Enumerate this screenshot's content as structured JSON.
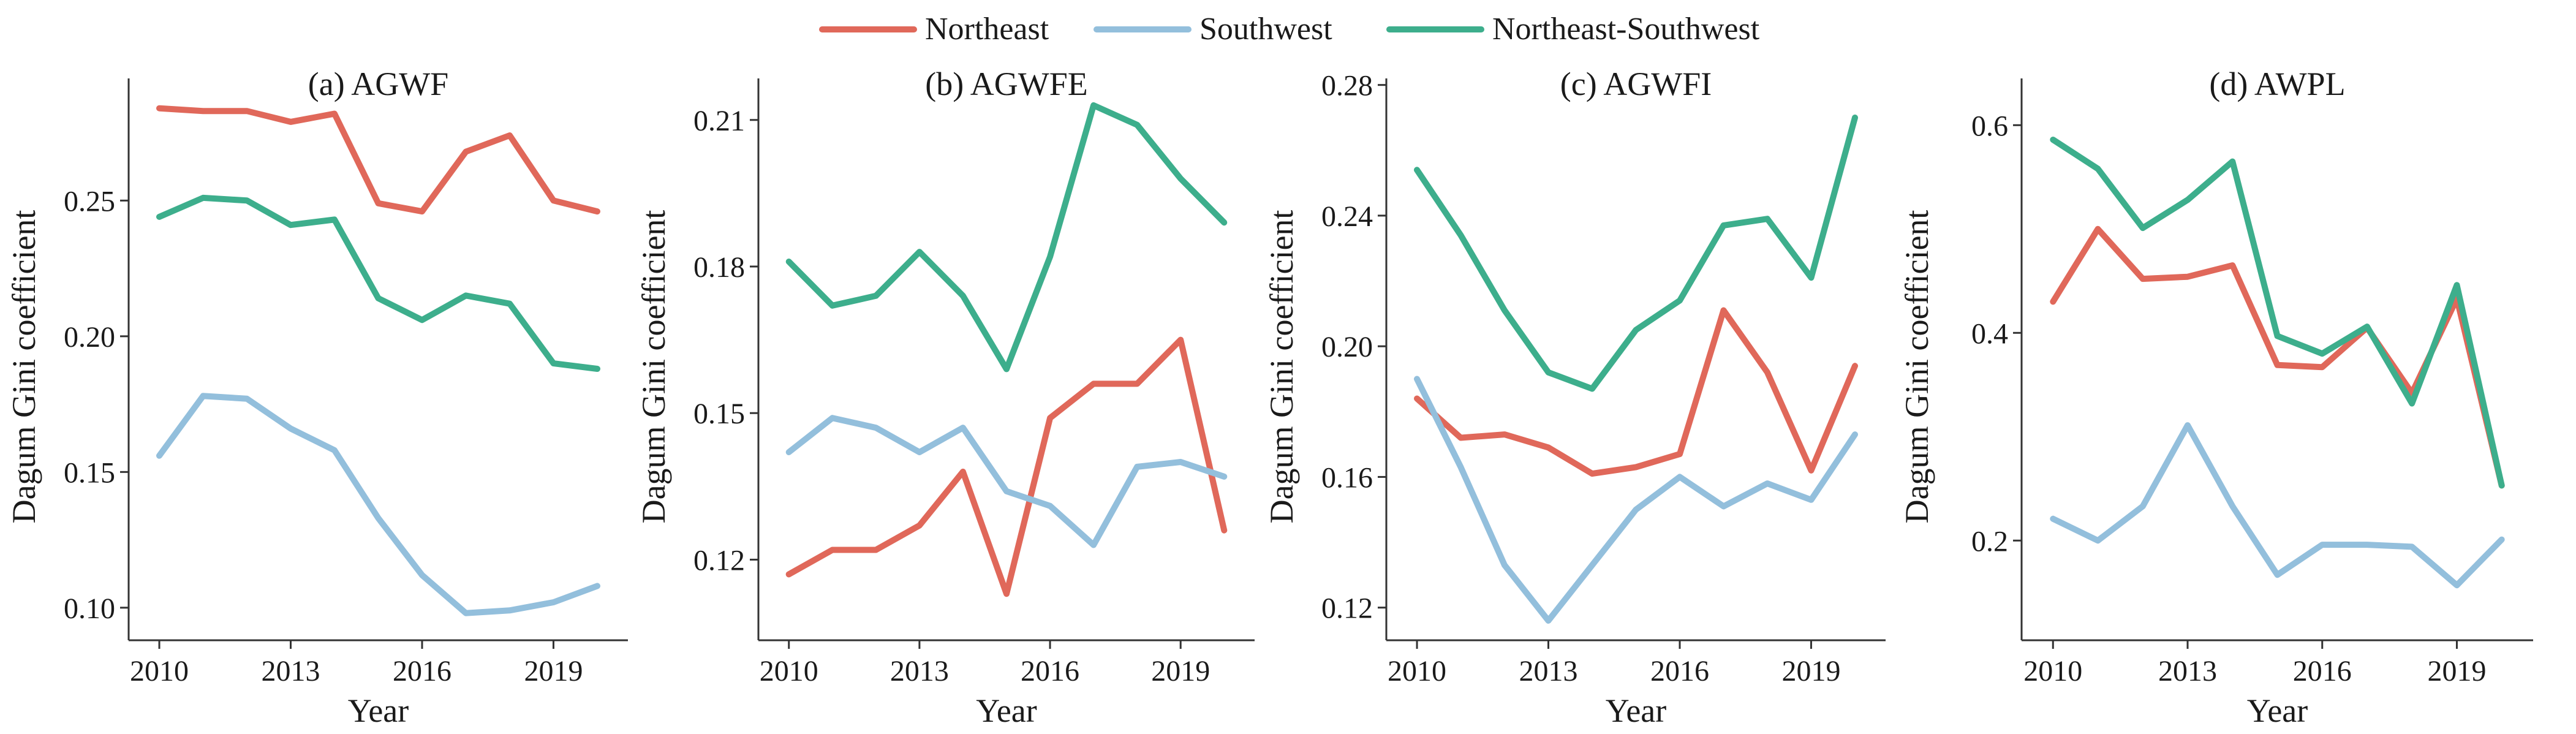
{
  "chart_data": [
    {
      "type": "line",
      "title": "(a) AGWF",
      "xlabel": "Year",
      "ylabel": "Dagum Gini coefficient",
      "x": [
        2010,
        2011,
        2012,
        2013,
        2014,
        2015,
        2016,
        2017,
        2018,
        2019,
        2020
      ],
      "xticks": [
        "2010",
        "2013",
        "2016",
        "2019"
      ],
      "xlim": [
        2009.3,
        2020.7
      ],
      "ylim": [
        0.088,
        0.295
      ],
      "yticks": [
        "0.10",
        "0.15",
        "0.20",
        "0.25"
      ],
      "series": [
        {
          "name": "Northeast",
          "values": [
            0.284,
            0.283,
            0.283,
            0.279,
            0.282,
            0.249,
            0.246,
            0.268,
            0.274,
            0.25,
            0.246
          ]
        },
        {
          "name": "Southwest",
          "values": [
            0.156,
            0.178,
            0.177,
            0.166,
            0.158,
            0.133,
            0.112,
            0.098,
            0.099,
            0.102,
            0.108
          ]
        },
        {
          "name": "Northeast-Southwest",
          "values": [
            0.244,
            0.251,
            0.25,
            0.241,
            0.243,
            0.214,
            0.206,
            0.215,
            0.212,
            0.19,
            0.188
          ]
        }
      ]
    },
    {
      "type": "line",
      "title": "(b) AGWFE",
      "xlabel": "Year",
      "ylabel": "Dagum Gini coefficient",
      "x": [
        2010,
        2011,
        2012,
        2013,
        2014,
        2015,
        2016,
        2017,
        2018,
        2019,
        2020
      ],
      "xticks": [
        "2010",
        "2013",
        "2016",
        "2019"
      ],
      "xlim": [
        2009.3,
        2020.7
      ],
      "ylim": [
        0.1035,
        0.2185
      ],
      "yticks": [
        "0.12",
        "0.15",
        "0.18",
        "0.21"
      ],
      "series": [
        {
          "name": "Northeast",
          "values": [
            0.117,
            0.122,
            0.122,
            0.127,
            0.138,
            0.113,
            0.149,
            0.156,
            0.156,
            0.165,
            0.126
          ]
        },
        {
          "name": "Southwest",
          "values": [
            0.142,
            0.149,
            0.147,
            0.142,
            0.147,
            0.134,
            0.131,
            0.123,
            0.139,
            0.14,
            0.137
          ]
        },
        {
          "name": "Northeast-Southwest",
          "values": [
            0.181,
            0.172,
            0.174,
            0.183,
            0.174,
            0.159,
            0.182,
            0.213,
            0.209,
            0.198,
            0.189
          ]
        }
      ]
    },
    {
      "type": "line",
      "title": "(c) AGWFI",
      "xlabel": "Year",
      "ylabel": "Dagum Gini coefficient",
      "x": [
        2010,
        2011,
        2012,
        2013,
        2014,
        2015,
        2016,
        2017,
        2018,
        2019,
        2020
      ],
      "xticks": [
        "2010",
        "2013",
        "2016",
        "2019"
      ],
      "xlim": [
        2009.3,
        2020.7
      ],
      "ylim": [
        0.11,
        0.282
      ],
      "yticks": [
        "0.12",
        "0.16",
        "0.20",
        "0.24",
        "0.28"
      ],
      "series": [
        {
          "name": "Northeast",
          "values": [
            0.184,
            0.172,
            0.173,
            0.169,
            0.161,
            0.163,
            0.167,
            0.211,
            0.192,
            0.162,
            0.194
          ]
        },
        {
          "name": "Southwest",
          "values": [
            0.19,
            0.163,
            0.133,
            0.116,
            0.133,
            0.15,
            0.16,
            0.151,
            0.158,
            0.153,
            0.173
          ]
        },
        {
          "name": "Northeast-Southwest",
          "values": [
            0.254,
            0.234,
            0.211,
            0.192,
            0.187,
            0.205,
            0.214,
            0.237,
            0.239,
            0.221,
            0.27
          ]
        }
      ]
    },
    {
      "type": "line",
      "title": "(d) AWPL",
      "xlabel": "Year",
      "ylabel": "Dagum Gini coefficient",
      "x": [
        2010,
        2011,
        2012,
        2013,
        2014,
        2015,
        2016,
        2017,
        2018,
        2019,
        2020
      ],
      "xticks": [
        "2010",
        "2013",
        "2016",
        "2019"
      ],
      "xlim": [
        2009.3,
        2020.7
      ],
      "ylim": [
        0.104,
        0.645
      ],
      "yticks": [
        "0.2",
        "0.4",
        "0.6"
      ],
      "series": [
        {
          "name": "Northeast",
          "values": [
            0.43,
            0.5,
            0.452,
            0.454,
            0.465,
            0.369,
            0.367,
            0.405,
            0.342,
            0.433,
            0.253
          ]
        },
        {
          "name": "Southwest",
          "values": [
            0.221,
            0.2,
            0.233,
            0.311,
            0.233,
            0.167,
            0.196,
            0.196,
            0.194,
            0.157,
            0.201
          ]
        },
        {
          "name": "Northeast-Southwest",
          "values": [
            0.586,
            0.558,
            0.501,
            0.528,
            0.565,
            0.397,
            0.38,
            0.406,
            0.332,
            0.446,
            0.253
          ]
        }
      ]
    }
  ],
  "legend": {
    "placement": "top-center",
    "items": [
      {
        "name": "Northeast",
        "color": "#e0685a"
      },
      {
        "name": "Southwest",
        "color": "#93bfdc"
      },
      {
        "name": "Northeast-Southwest",
        "color": "#3dae8c"
      }
    ]
  }
}
